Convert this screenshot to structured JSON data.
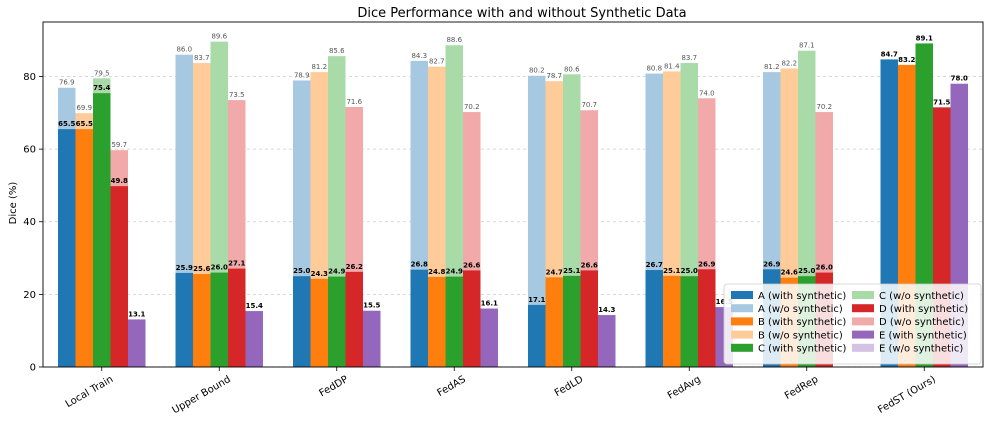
{
  "chart_data": {
    "type": "bar",
    "title": "Dice Performance with and without Synthetic Data",
    "xlabel": "",
    "ylabel": "Dice (%)",
    "ylim": [
      0,
      95
    ],
    "yticks": [
      0,
      20,
      40,
      60,
      80
    ],
    "grid": true,
    "legend_position": "lower-right",
    "categories": [
      "Local Train",
      "Upper Bound",
      "FedDP",
      "FedAS",
      "FedLD",
      "FedAvg",
      "FedRep",
      "FedST (Ours)"
    ],
    "series": [
      {
        "name": "A (with synthetic)",
        "color": "#1f77b4",
        "values": [
          65.5,
          25.9,
          25.0,
          26.8,
          17.1,
          26.7,
          26.9,
          84.7
        ]
      },
      {
        "name": "A (w/o synthetic)",
        "color": "#a6c8e0",
        "values": [
          76.9,
          86.0,
          78.9,
          84.3,
          80.2,
          80.8,
          81.2,
          null
        ]
      },
      {
        "name": "B (with synthetic)",
        "color": "#ff7f0e",
        "values": [
          65.5,
          25.6,
          24.3,
          24.8,
          24.7,
          25.1,
          24.6,
          83.2
        ]
      },
      {
        "name": "B (w/o synthetic)",
        "color": "#ffcc99",
        "values": [
          69.9,
          83.7,
          81.2,
          82.7,
          78.7,
          81.4,
          82.2,
          null
        ]
      },
      {
        "name": "C (with synthetic)",
        "color": "#2ca02c",
        "values": [
          75.4,
          26.0,
          24.9,
          24.9,
          25.1,
          25.0,
          25.0,
          89.1
        ]
      },
      {
        "name": "C (w/o synthetic)",
        "color": "#a9dba9",
        "values": [
          79.5,
          89.6,
          85.6,
          88.6,
          80.6,
          83.7,
          87.1,
          null
        ]
      },
      {
        "name": "D (with synthetic)",
        "color": "#d62728",
        "values": [
          49.8,
          27.1,
          26.2,
          26.6,
          26.6,
          26.9,
          26.0,
          71.5
        ]
      },
      {
        "name": "D (w/o synthetic)",
        "color": "#f1a9a9",
        "values": [
          59.7,
          73.5,
          71.6,
          70.2,
          70.7,
          74.0,
          70.2,
          null
        ]
      },
      {
        "name": "E (with synthetic)",
        "color": "#9467bd",
        "values": [
          13.1,
          15.4,
          15.5,
          16.1,
          14.3,
          16.5,
          null,
          78.0
        ]
      },
      {
        "name": "E (w/o synthetic)",
        "color": "#d4c2e4",
        "values": [
          null,
          null,
          null,
          null,
          null,
          null,
          null,
          null
        ]
      }
    ]
  }
}
